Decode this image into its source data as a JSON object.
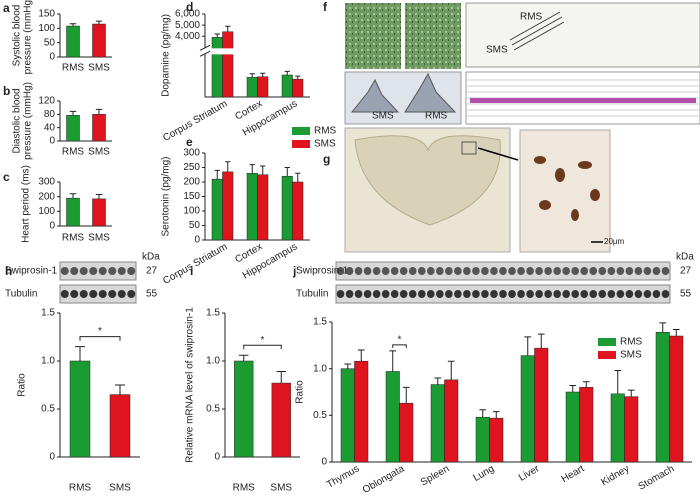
{
  "chart_data": [
    {
      "panel": "a",
      "type": "bar",
      "ylabel": [
        "Systolic blood",
        "pressure (mmHg)"
      ],
      "categories": [
        "RMS",
        "SMS"
      ],
      "values": [
        108,
        115
      ],
      "errors": [
        8,
        10
      ],
      "colors": [
        "#1a9c32",
        "#e0141e"
      ],
      "ylim": [
        0,
        150
      ],
      "yticks": [
        0,
        50,
        100,
        150
      ]
    },
    {
      "panel": "b",
      "type": "bar",
      "ylabel": [
        "Diastolic blood",
        "pressure (mmHg)"
      ],
      "categories": [
        "RMS",
        "SMS"
      ],
      "values": [
        77,
        80
      ],
      "errors": [
        12,
        15
      ],
      "colors": [
        "#1a9c32",
        "#e0141e"
      ],
      "ylim": [
        0,
        120
      ],
      "yticks": [
        0,
        40,
        80,
        120
      ]
    },
    {
      "panel": "c",
      "type": "bar",
      "ylabel": [
        "Heart period (ms)"
      ],
      "categories": [
        "RMS",
        "SMS"
      ],
      "values": [
        190,
        185
      ],
      "errors": [
        30,
        30
      ],
      "colors": [
        "#1a9c32",
        "#e0141e"
      ],
      "ylim": [
        0,
        300
      ],
      "yticks": [
        0,
        100,
        200,
        300
      ]
    },
    {
      "panel": "d",
      "type": "bar",
      "ylabel": [
        "Dopamine (pg/mg)"
      ],
      "categories": [
        "Corpus Striatum",
        "Cortex",
        "Hippocampus"
      ],
      "series": [
        {
          "name": "RMS",
          "color": "#1a9c32",
          "values": [
            3900,
            330,
            370
          ],
          "errors": [
            300,
            60,
            60
          ]
        },
        {
          "name": "SMS",
          "color": "#e0141e",
          "values": [
            4400,
            340,
            300
          ],
          "errors": [
            500,
            60,
            50
          ]
        }
      ],
      "ylim": [
        0,
        6000
      ],
      "ybreak": [
        700,
        3000
      ],
      "yticks": [
        {
          "value": 4000,
          "label": "4,000"
        },
        {
          "value": 5000,
          "label": "5,000"
        },
        {
          "value": 6000,
          "label": "6,000"
        }
      ]
    },
    {
      "panel": "e",
      "type": "bar",
      "ylabel": [
        "Serotonin (pg/mg)"
      ],
      "categories": [
        "Corpus Striatum",
        "Cortex",
        "Hippocampus"
      ],
      "series": [
        {
          "name": "RMS",
          "color": "#1a9c32",
          "values": [
            210,
            230,
            220
          ],
          "errors": [
            30,
            30,
            30
          ]
        },
        {
          "name": "SMS",
          "color": "#e0141e",
          "values": [
            235,
            225,
            200
          ],
          "errors": [
            35,
            30,
            30
          ]
        }
      ],
      "ylim": [
        0,
        300
      ],
      "yticks": [
        0,
        50,
        100,
        150,
        200,
        250,
        300
      ]
    },
    {
      "panel": "h",
      "type": "bar",
      "ylabel": [
        "Ratio"
      ],
      "blot": {
        "bands": [
          "Swiprosin-1",
          "Tubulin"
        ],
        "unit": "kDa",
        "sizes": [
          27,
          55
        ]
      },
      "categories": [
        "RMS",
        "SMS"
      ],
      "values": [
        1.0,
        0.65
      ],
      "errors": [
        0.15,
        0.1
      ],
      "colors": [
        "#1a9c32",
        "#e0141e"
      ],
      "significance": "*",
      "ylim": [
        0,
        1.5
      ],
      "yticks": [
        0,
        0.5,
        {
          "value": 1.0,
          "label": "1.0"
        },
        1.5
      ]
    },
    {
      "panel": "i",
      "type": "bar",
      "ylabel": [
        "Relative mRNA level of swiprosin-1"
      ],
      "categories": [
        "RMS",
        "SMS"
      ],
      "values": [
        1.0,
        0.77
      ],
      "errors": [
        0.06,
        0.12
      ],
      "colors": [
        "#1a9c32",
        "#e0141e"
      ],
      "significance": "*",
      "ylim": [
        0,
        1.5
      ],
      "yticks": [
        0,
        0.5,
        {
          "value": 1.0,
          "label": "1.0"
        },
        1.5
      ]
    },
    {
      "panel": "j",
      "type": "bar",
      "ylabel": [
        "Ratio"
      ],
      "blot": {
        "bands": [
          "Swiprosin-1",
          "Tubulin"
        ],
        "unit": "kDa",
        "sizes": [
          27,
          55
        ]
      },
      "categories": [
        "Thymus",
        "Oblongata",
        "Spleen",
        "Lung",
        "Liver",
        "Heart",
        "Kidney",
        "Stomach"
      ],
      "series": [
        {
          "name": "RMS",
          "color": "#1a9c32",
          "values": [
            1.0,
            0.97,
            0.83,
            0.48,
            1.14,
            0.75,
            0.73,
            1.39
          ],
          "errors": [
            0.05,
            0.22,
            0.07,
            0.08,
            0.2,
            0.07,
            0.25,
            0.1
          ]
        },
        {
          "name": "SMS",
          "color": "#e0141e",
          "values": [
            1.08,
            0.63,
            0.88,
            0.47,
            1.22,
            0.8,
            0.7,
            1.35
          ],
          "errors": [
            0.12,
            0.17,
            0.2,
            0.07,
            0.15,
            0.06,
            0.07,
            0.07
          ]
        }
      ],
      "significance": [
        null,
        "*",
        null,
        null,
        null,
        null,
        null,
        null
      ],
      "ylim": [
        0,
        1.5
      ],
      "yticks": [
        0,
        0.5,
        {
          "value": 1.0,
          "label": "1.0"
        },
        1.5
      ]
    }
  ],
  "images": {
    "f": {
      "panel": "f",
      "labels": [
        "RMS",
        "SMS",
        "SMS",
        "RMS"
      ]
    },
    "g": {
      "panel": "g",
      "scale_bar": "20μm"
    }
  }
}
